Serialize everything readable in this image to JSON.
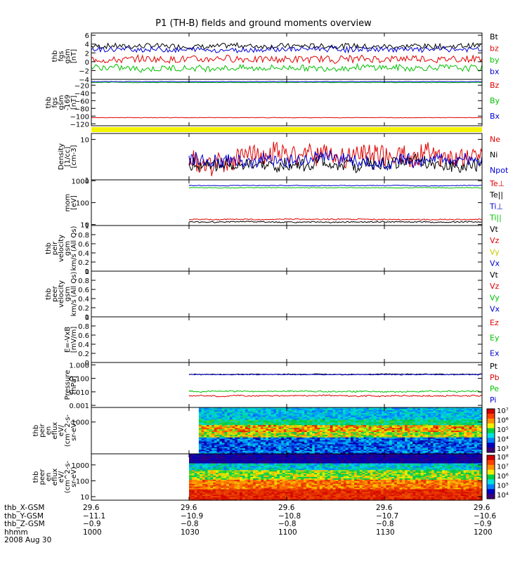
{
  "title": "P1 (TH-B) fields and ground moments overview",
  "chart_data": [
    {
      "id": "p0",
      "type": "line",
      "ylabel": [
        "thb",
        "fgs",
        "gsm",
        "[nT]"
      ],
      "yticks": [
        6,
        4,
        2,
        0,
        -2,
        -4
      ],
      "ylim": [
        -4,
        6.5
      ],
      "legend": [
        {
          "name": "Bt",
          "color": "#000000"
        },
        {
          "name": "bz",
          "color": "#e00000"
        },
        {
          "name": "by",
          "color": "#00c000"
        },
        {
          "name": "bx",
          "color": "#0000d0"
        }
      ],
      "series": [
        {
          "name": "Bt",
          "color": "#000000",
          "base": 3.6,
          "amp": 0.6,
          "from": 0
        },
        {
          "name": "bz",
          "color": "#e00000",
          "base": 0.6,
          "amp": 0.8,
          "from": 0
        },
        {
          "name": "by",
          "color": "#00c000",
          "base": -1.4,
          "amp": 0.7,
          "from": 0
        },
        {
          "name": "bx",
          "color": "#0000d0",
          "base": 2.8,
          "amp": 0.6,
          "from": 0
        }
      ]
    },
    {
      "id": "p1",
      "type": "line",
      "ylabel": [
        "thb",
        "fgs",
        "gsm",
        "-169",
        "[nT]"
      ],
      "yticks": [
        -20,
        -40,
        -60,
        -80,
        -100,
        -120
      ],
      "ylim": [
        -125,
        -5
      ],
      "legend": [
        {
          "name": "Bz",
          "color": "#e00000"
        },
        {
          "name": "By",
          "color": "#00c000"
        },
        {
          "name": "Bx",
          "color": "#0000d0"
        }
      ],
      "series": [
        {
          "name": "Bz",
          "color": "#e00000",
          "base": -104,
          "amp": 0.6,
          "from": 0
        },
        {
          "name": "By",
          "color": "#00c000",
          "base": -13,
          "amp": 0.8,
          "from": 0
        },
        {
          "name": "Bx",
          "color": "#0000d0",
          "base": -11,
          "amp": 0.5,
          "from": 0
        }
      ]
    },
    {
      "id": "p2",
      "type": "line",
      "ylabel": [
        "Density",
        "[1/cc]",
        "[cm-3]"
      ],
      "log": true,
      "yticks": [
        10,
        1
      ],
      "ylim": [
        1,
        14
      ],
      "legend": [
        {
          "name": "Ne",
          "color": "#e00000"
        },
        {
          "name": "Ni",
          "color": "#000000"
        },
        {
          "name": "Npot",
          "color": "#0000d0"
        }
      ],
      "series": [
        {
          "name": "Ne",
          "color": "#e00000",
          "base": 4.3,
          "amp": 0.5,
          "from": 1030
        },
        {
          "name": "Ni",
          "color": "#000000",
          "base": 2.4,
          "amp": 0.3,
          "from": 1030
        },
        {
          "name": "Npot",
          "color": "#0000d0",
          "base": 3.2,
          "amp": 0.3,
          "from": 1030
        }
      ]
    },
    {
      "id": "p3",
      "type": "line",
      "ylabel": [
        "mom",
        "[eV]"
      ],
      "log": true,
      "yticks": [
        1000,
        100,
        10
      ],
      "ylim": [
        9,
        1100
      ],
      "legend": [
        {
          "name": "Te⊥",
          "color": "#e00000"
        },
        {
          "name": "Te||",
          "color": "#000000"
        },
        {
          "name": "Ti⊥",
          "color": "#0000d0"
        },
        {
          "name": "Ti||",
          "color": "#00c000"
        }
      ],
      "series": [
        {
          "name": "Ti⊥",
          "color": "#0000d0",
          "base": 600,
          "amp": 0.03,
          "from": 1030
        },
        {
          "name": "Ti||",
          "color": "#00c000",
          "base": 480,
          "amp": 0.03,
          "from": 1030
        },
        {
          "name": "Te⊥",
          "color": "#e00000",
          "base": 17,
          "amp": 0.05,
          "from": 1030
        },
        {
          "name": "Te||",
          "color": "#000000",
          "base": 13,
          "amp": 0.05,
          "from": 1030
        }
      ]
    },
    {
      "id": "p4",
      "type": "line",
      "ylabel": [
        "thb",
        "peir",
        "velocity",
        "gsm",
        "km/s (All Qs)"
      ],
      "yticks": [
        0.0,
        0.2,
        0.4,
        0.6,
        0.8,
        1.0
      ],
      "ylim": [
        0,
        1
      ],
      "legend": [
        {
          "name": "Vt",
          "color": "#000000"
        },
        {
          "name": "Vz",
          "color": "#e00000"
        },
        {
          "name": "Vy",
          "color": "#c8c800"
        },
        {
          "name": "Vx",
          "color": "#0000d0"
        }
      ],
      "series": []
    },
    {
      "id": "p5",
      "type": "line",
      "ylabel": [
        "thb",
        "peer",
        "velocity",
        "gsm",
        "km/s (All Qs)"
      ],
      "yticks": [
        0.0,
        0.2,
        0.4,
        0.6,
        0.8,
        1.0
      ],
      "ylim": [
        0,
        1
      ],
      "legend": [
        {
          "name": "Vt",
          "color": "#000000"
        },
        {
          "name": "Vz",
          "color": "#e00000"
        },
        {
          "name": "Vy",
          "color": "#00c000"
        },
        {
          "name": "Vx",
          "color": "#0000d0"
        }
      ],
      "series": []
    },
    {
      "id": "p6",
      "type": "line",
      "ylabel": [
        "E=-VxB",
        "[mV/m]"
      ],
      "yticks": [
        0.0,
        0.2,
        0.4,
        0.6,
        0.8,
        1.0
      ],
      "ylim": [
        0,
        1
      ],
      "legend": [
        {
          "name": "Ez",
          "color": "#e00000"
        },
        {
          "name": "Ey",
          "color": "#00c000"
        },
        {
          "name": "Ex",
          "color": "#0000d0"
        }
      ],
      "series": []
    },
    {
      "id": "p7",
      "type": "line",
      "ylabel": [
        "Pressure",
        "[nPa]"
      ],
      "log": true,
      "yticks": [
        1.0,
        0.1,
        0.01,
        0.001
      ],
      "yticklabels": [
        "1.000",
        "0.100",
        "0.010",
        "0.001"
      ],
      "ylim": [
        0.0007,
        1.5
      ],
      "legend": [
        {
          "name": "Pt",
          "color": "#000000"
        },
        {
          "name": "Pb",
          "color": "#e00000"
        },
        {
          "name": "Pe",
          "color": "#00c000"
        },
        {
          "name": "Pi",
          "color": "#0000d0"
        }
      ],
      "series": [
        {
          "name": "Pt",
          "color": "#000000",
          "base": 0.2,
          "amp": 0.06,
          "from": 1030
        },
        {
          "name": "Pi",
          "color": "#0000d0",
          "base": 0.19,
          "amp": 0.06,
          "from": 1030
        },
        {
          "name": "Pe",
          "color": "#00c000",
          "base": 0.011,
          "amp": 0.1,
          "from": 1030
        },
        {
          "name": "Pb",
          "color": "#e00000",
          "base": 0.0052,
          "amp": 0.1,
          "from": 1030
        }
      ]
    },
    {
      "id": "p8",
      "type": "heatmap",
      "ylabel": [
        "thb",
        "peir",
        "en",
        "eflux",
        "eV/",
        "(cm^2-s-",
        "sr-eV)"
      ],
      "log": true,
      "yticks": [
        1000
      ],
      "ylim": [
        20,
        6000
      ],
      "from": 1033
    },
    {
      "id": "p9",
      "type": "heatmap",
      "ylabel": [
        "thb",
        "peer",
        "en",
        "eflux",
        "eV/",
        "(cm^2-s-",
        "sr-eV)"
      ],
      "log": true,
      "yticks": [
        1000,
        100,
        10
      ],
      "ylim": [
        6,
        5000
      ],
      "from": 1030
    }
  ],
  "colorbar1": {
    "labels": [
      "10⁷",
      "10⁶",
      "10⁵",
      "10⁴",
      "10³"
    ]
  },
  "colorbar2": {
    "labels": [
      "10⁸",
      "10⁷",
      "10⁶",
      "10⁵",
      "10⁴"
    ]
  },
  "time_range": [
    1000,
    1200
  ],
  "time_ticks": [
    1000,
    1030,
    1100,
    1130,
    1200
  ],
  "ephemeris": {
    "labels": [
      "thb_X-GSM",
      "thb_Y-GSM",
      "thb_Z-GSM",
      "hhmm",
      "2008 Aug 30"
    ],
    "columns": [
      [
        "29.6",
        "-11.1",
        "-0.9",
        "1000"
      ],
      [
        "29.6",
        "-10.9",
        "-0.8",
        "1030"
      ],
      [
        "29.6",
        "-10.8",
        "-0.8",
        "1100"
      ],
      [
        "29.6",
        "-10.7",
        "-0.8",
        "1130"
      ],
      [
        "29.6",
        "-10.6",
        "-0.9",
        "1200"
      ]
    ]
  }
}
